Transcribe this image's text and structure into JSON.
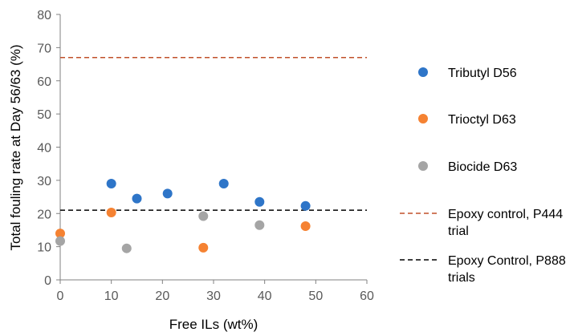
{
  "chart_data": {
    "type": "scatter",
    "title": "",
    "xlabel": "Free ILs (wt%)",
    "ylabel": "Total fouling rate at Day 56/63 (%)",
    "xlim": [
      0,
      60
    ],
    "ylim": [
      0,
      80
    ],
    "x_ticks": [
      0,
      10,
      20,
      30,
      40,
      50,
      60
    ],
    "y_ticks": [
      0,
      10,
      20,
      30,
      40,
      50,
      60,
      70,
      80
    ],
    "grid": false,
    "legend_position": "right",
    "series": [
      {
        "name": "Tributyl D56",
        "color": "#2E75C8",
        "points": [
          [
            10,
            29
          ],
          [
            15,
            24.5
          ],
          [
            21,
            26
          ],
          [
            32,
            29
          ],
          [
            39,
            23.5
          ],
          [
            48,
            22.3
          ]
        ]
      },
      {
        "name": "Trioctyl D63",
        "color": "#F58232",
        "points": [
          [
            0,
            14
          ],
          [
            10,
            20.3
          ],
          [
            28,
            9.7
          ],
          [
            48,
            16.2
          ]
        ]
      },
      {
        "name": "Biocide D63",
        "color": "#A5A5A5",
        "points": [
          [
            0,
            11.7
          ],
          [
            13,
            9.5
          ],
          [
            28,
            19.2
          ],
          [
            39,
            16.5
          ]
        ]
      }
    ],
    "reference_lines": [
      {
        "name": "Epoxy control, P444 trial",
        "label_lines": [
          "Epoxy control, P444",
          "trial"
        ],
        "y": 67,
        "color": "#C0502A",
        "style": "dashed"
      },
      {
        "name": "Epoxy Control, P888 trials",
        "label_lines": [
          "Epoxy Control, P888",
          "trials"
        ],
        "y": 21,
        "color": "#000000",
        "style": "dashed"
      }
    ]
  }
}
